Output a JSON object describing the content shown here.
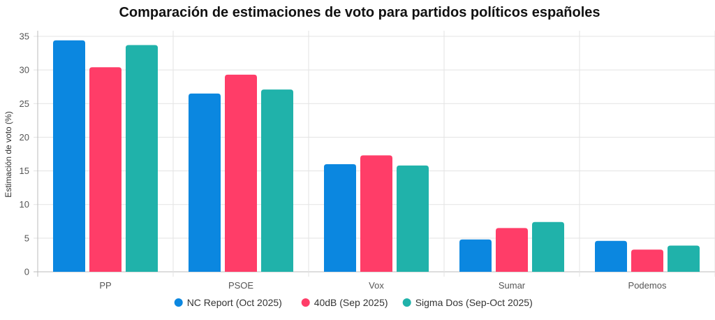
{
  "chart_data": {
    "type": "bar",
    "title": "Comparación de estimaciones de voto para partidos políticos españoles",
    "xlabel": "",
    "ylabel": "Estimación de voto (%)",
    "ylim": [
      0,
      35
    ],
    "yticks": [
      0,
      5,
      10,
      15,
      20,
      25,
      30,
      35
    ],
    "grid": true,
    "legend_position": "bottom",
    "categories": [
      "PP",
      "PSOE",
      "Vox",
      "Sumar",
      "Podemos"
    ],
    "series": [
      {
        "name": "NC Report (Oct 2025)",
        "color": "#0b87e0",
        "values": [
          34.4,
          26.5,
          16.0,
          4.8,
          4.6
        ]
      },
      {
        "name": "40dB (Sep 2025)",
        "color": "#ff3d68",
        "values": [
          30.4,
          29.3,
          17.3,
          6.5,
          3.3
        ]
      },
      {
        "name": "Sigma Dos (Sep-Oct 2025)",
        "color": "#20b2aa",
        "values": [
          33.7,
          27.1,
          15.8,
          7.4,
          3.9
        ]
      }
    ]
  }
}
